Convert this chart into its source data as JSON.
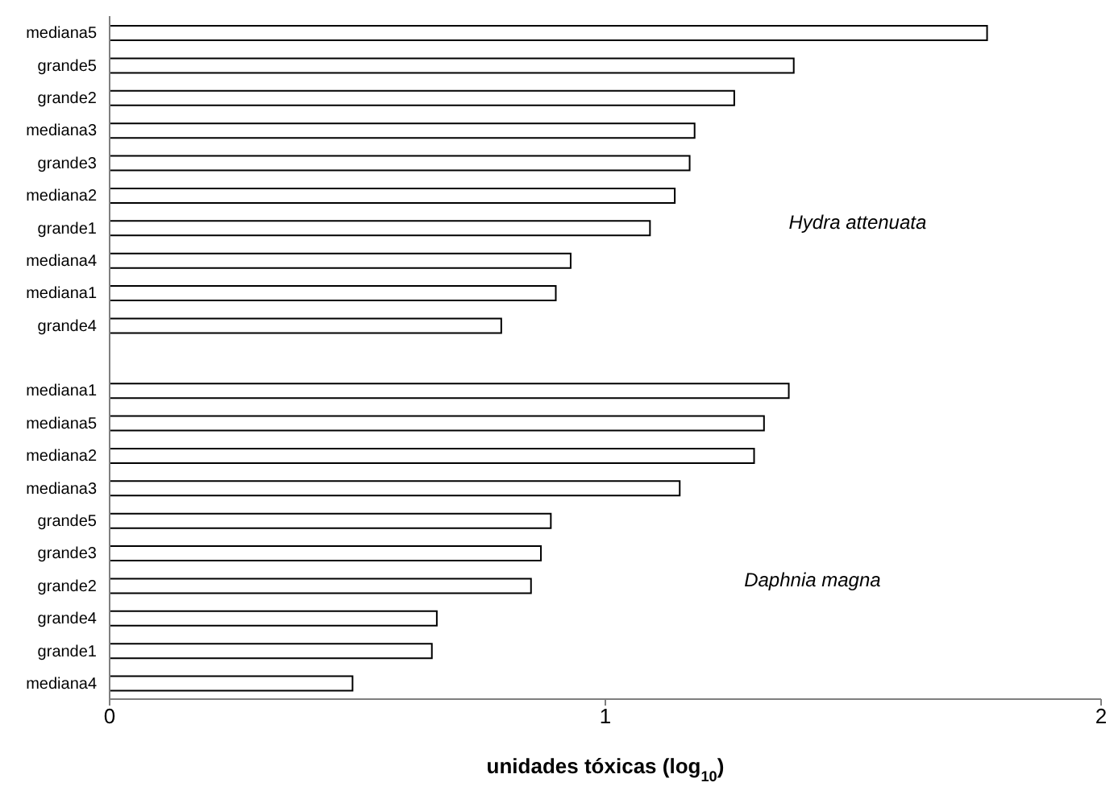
{
  "chart_data": {
    "type": "bar",
    "orientation": "horizontal",
    "xlabel": "unidades tóxicas (log$_{10}$)",
    "categories": [
      "mediana5",
      "grande5",
      "grande2",
      "mediana3",
      "grande3",
      "mediana2",
      "grande1",
      "mediana4",
      "mediana1",
      "grande4",
      null,
      "mediana1",
      "mediana5",
      "mediana2",
      "mediana3",
      "grande5",
      "grande3",
      "grande2",
      "grande4",
      "grande1",
      "mediana4"
    ],
    "values": [
      1.77,
      1.38,
      1.26,
      1.18,
      1.17,
      1.14,
      1.09,
      0.93,
      0.9,
      0.79,
      null,
      1.37,
      1.32,
      1.3,
      1.15,
      0.89,
      0.87,
      0.85,
      0.66,
      0.65,
      0.49
    ],
    "color": "#ffffff",
    "xlim": [
      0,
      2
    ],
    "xticks": [
      0,
      1,
      2
    ],
    "grid": false,
    "annotations": [
      "Hydra attenuata",
      "Daphnia magna"
    ]
  }
}
